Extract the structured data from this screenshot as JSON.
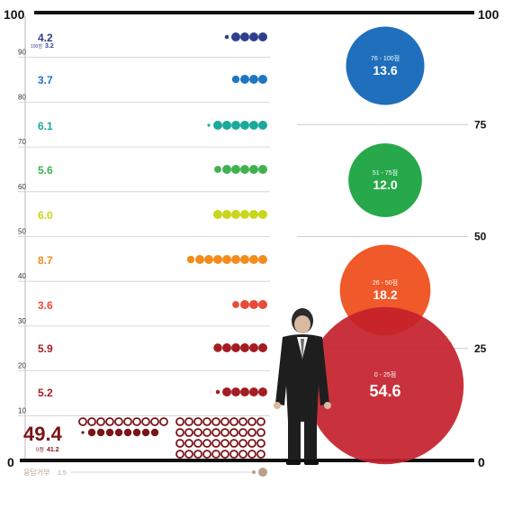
{
  "chart_data": {
    "type": "bubble-dotplot",
    "axis_labels": {
      "top_left": "100",
      "top_right": "100",
      "bottom_left": "0",
      "bottom_right": "0",
      "left_ticks": [
        "90",
        "80",
        "70",
        "60",
        "50",
        "40",
        "30",
        "20",
        "10"
      ],
      "right_ticks": [
        "75",
        "50",
        "25"
      ]
    },
    "rows": [
      {
        "value": "4.2",
        "color": "#2e3f8f",
        "sub": "100점",
        "subvalue": "3.2"
      },
      {
        "value": "3.7",
        "color": "#1f76c2"
      },
      {
        "value": "6.1",
        "color": "#1aa99c"
      },
      {
        "value": "5.6",
        "color": "#3fb24d"
      },
      {
        "value": "6.0",
        "color": "#c9d61b"
      },
      {
        "value": "8.7",
        "color": "#f28c1c"
      },
      {
        "value": "3.6",
        "color": "#ea4a3a"
      },
      {
        "value": "5.9",
        "color": "#a51d22"
      },
      {
        "value": "5.2",
        "color": "#a51d22"
      },
      {
        "value": "49.4",
        "color": "#7a1418",
        "sub": "0점",
        "subvalue": "41.2"
      }
    ],
    "no_response": {
      "label": "응답거부",
      "value": "1.5",
      "color": "#b6a08e"
    },
    "groups": [
      {
        "range": "76 - 100점",
        "value": "13.6",
        "color": "#1f6fbd"
      },
      {
        "range": "51 - 75점",
        "value": "12.0",
        "color": "#27a84a"
      },
      {
        "range": "26 - 50점",
        "value": "18.2",
        "color": "#f0592a"
      },
      {
        "range": "0 - 25점",
        "value": "54.6",
        "color": "#c4212b"
      }
    ]
  }
}
